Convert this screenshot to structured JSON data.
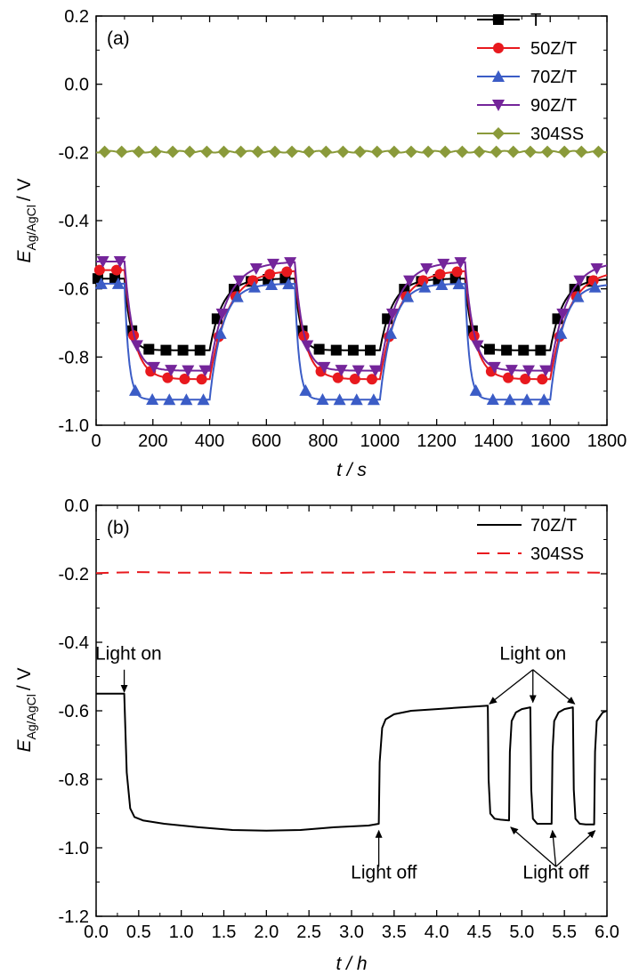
{
  "colors": {
    "T": "#000000",
    "50Z/T": "#e8191e",
    "70Z/T": "#3b5cc6",
    "90Z/T": "#74259a",
    "304SS": "#8a9a3a",
    "b_70Z/T": "#000000",
    "b_304SS": "#e8191e"
  },
  "chart_data": [
    {
      "panel_label": "(a)",
      "type": "line",
      "xlabel": "t / s",
      "ylabel_main": "E",
      "ylabel_sub": "Ag/AgCl",
      "ylabel_unit": "/ V",
      "xlim": [
        0,
        1800
      ],
      "ylim": [
        -1.0,
        0.2
      ],
      "xticks": [
        "0",
        "200",
        "400",
        "600",
        "800",
        "1000",
        "1200",
        "1400",
        "1600",
        "1800"
      ],
      "yticks": [
        "-1.0",
        "-0.8",
        "-0.6",
        "-0.4",
        "-0.2",
        "0.0",
        "0.2"
      ],
      "legend_position": "top-right",
      "series": [
        {
          "name": "T",
          "marker": "square",
          "base": -0.57,
          "low": -0.78,
          "tau_on": 20,
          "tau_off": 45
        },
        {
          "name": "50Z/T",
          "marker": "circle",
          "base": -0.545,
          "low": -0.865,
          "tau_on": 35,
          "tau_off": 65
        },
        {
          "name": "70Z/T",
          "marker": "triangle-up",
          "base": -0.585,
          "low": -0.925,
          "tau_on": 15,
          "tau_off": 45
        },
        {
          "name": "90Z/T",
          "marker": "triangle-down",
          "base": -0.52,
          "low": -0.84,
          "tau_on": 30,
          "tau_off": 60
        },
        {
          "name": "304SS",
          "marker": "diamond",
          "base": -0.198,
          "low": -0.198,
          "tau_on": 1,
          "tau_off": 1
        }
      ],
      "light_on_times": [
        100,
        700,
        1300
      ],
      "light_off_times": [
        400,
        1000,
        1600
      ]
    },
    {
      "panel_label": "(b)",
      "type": "line",
      "xlabel": "t / h",
      "ylabel_main": "E",
      "ylabel_sub": "Ag/AgCl",
      "ylabel_unit": "/ V",
      "xlim": [
        0,
        6.0
      ],
      "ylim": [
        -1.2,
        0.0
      ],
      "xticks": [
        "0.0",
        "0.5",
        "1.0",
        "1.5",
        "2.0",
        "2.5",
        "3.0",
        "3.5",
        "4.0",
        "4.5",
        "5.0",
        "5.5",
        "6.0"
      ],
      "yticks": [
        "-1.2",
        "-1.0",
        "-0.8",
        "-0.6",
        "-0.4",
        "-0.2",
        "0.0"
      ],
      "legend_position": "top-right",
      "series": [
        {
          "name": "70Z/T",
          "style": "solid",
          "x": [
            0,
            0.33,
            0.36,
            0.4,
            0.45,
            0.55,
            0.8,
            1.2,
            1.6,
            2.0,
            2.4,
            2.8,
            3.2,
            3.32,
            3.33,
            3.36,
            3.4,
            3.5,
            3.7,
            4.0,
            4.3,
            4.6,
            4.61,
            4.63,
            4.68,
            4.75,
            4.85,
            4.86,
            4.88,
            4.93,
            5.0,
            5.1,
            5.11,
            5.13,
            5.18,
            5.25,
            5.35,
            5.36,
            5.38,
            5.43,
            5.5,
            5.6,
            5.61,
            5.63,
            5.68,
            5.75,
            5.85,
            5.86,
            5.88,
            5.95,
            6.0
          ],
          "y": [
            -0.55,
            -0.55,
            -0.78,
            -0.885,
            -0.91,
            -0.92,
            -0.93,
            -0.94,
            -0.948,
            -0.95,
            -0.948,
            -0.94,
            -0.935,
            -0.93,
            -0.75,
            -0.65,
            -0.625,
            -0.61,
            -0.6,
            -0.595,
            -0.59,
            -0.585,
            -0.8,
            -0.9,
            -0.915,
            -0.918,
            -0.92,
            -0.72,
            -0.63,
            -0.605,
            -0.595,
            -0.59,
            -0.83,
            -0.915,
            -0.93,
            -0.93,
            -0.93,
            -0.72,
            -0.63,
            -0.605,
            -0.595,
            -0.59,
            -0.83,
            -0.915,
            -0.93,
            -0.932,
            -0.932,
            -0.72,
            -0.63,
            -0.605,
            -0.6
          ]
        },
        {
          "name": "304SS",
          "style": "dashed",
          "x": [
            0,
            0.5,
            1.0,
            1.5,
            2.0,
            2.5,
            3.0,
            3.5,
            4.0,
            4.5,
            5.0,
            5.5,
            6.0
          ],
          "y": [
            -0.198,
            -0.195,
            -0.197,
            -0.196,
            -0.198,
            -0.196,
            -0.197,
            -0.195,
            -0.197,
            -0.196,
            -0.197,
            -0.196,
            -0.197
          ]
        }
      ],
      "annotations": [
        {
          "text": "Light on",
          "kind": "single-on"
        },
        {
          "text": "Light off",
          "kind": "single-off"
        },
        {
          "text": "Light on",
          "kind": "multi-on"
        },
        {
          "text": "Light off",
          "kind": "multi-off"
        }
      ]
    }
  ]
}
